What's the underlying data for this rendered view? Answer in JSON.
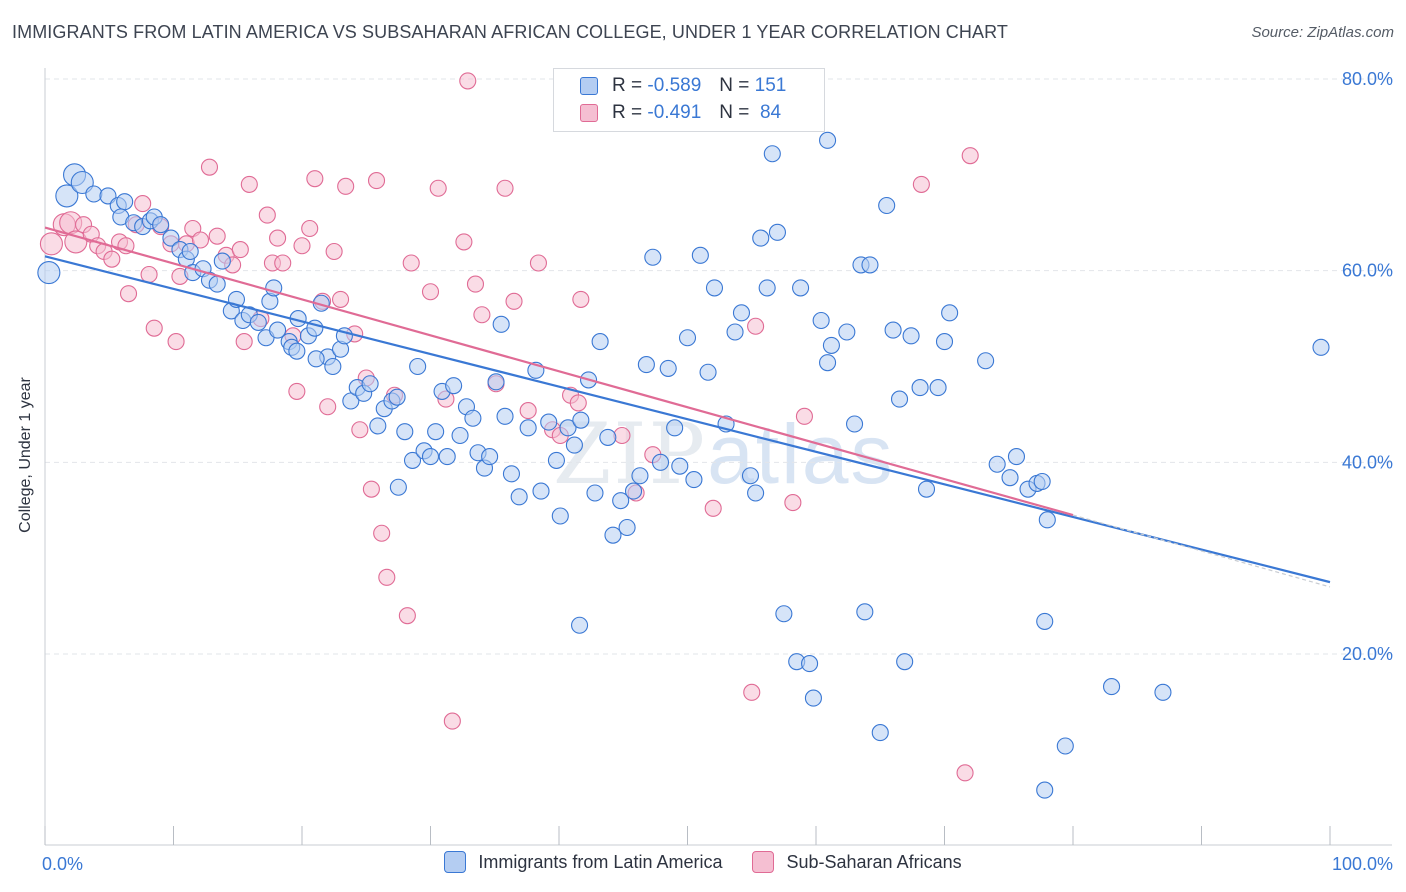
{
  "title": "IMMIGRANTS FROM LATIN AMERICA VS SUBSAHARAN AFRICAN COLLEGE, UNDER 1 YEAR CORRELATION CHART",
  "source": "Source: ZipAtlas.com",
  "watermark": {
    "zip": "ZIP",
    "atlas": "atlas"
  },
  "colors": {
    "blue": "#3a78d4",
    "blue_fill": "#b4cdf2",
    "pink": "#e06b95",
    "pink_fill": "#f5bfd2",
    "grid": "#e2e5ea",
    "axis_text": "#3a78d4"
  },
  "legend": [
    {
      "r_label": "R = ",
      "r_value": "-0.589",
      "n_label": "N = ",
      "n_value": "151"
    },
    {
      "r_label": "R = ",
      "r_value": "-0.491",
      "n_label": "N = ",
      "n_value": "84"
    }
  ],
  "chart_data": {
    "type": "scatter",
    "title": "IMMIGRANTS FROM LATIN AMERICA VS SUBSAHARAN AFRICAN COLLEGE, UNDER 1 YEAR CORRELATION CHART",
    "xlabel": "",
    "ylabel": "College, Under 1 year",
    "xlim": [
      0,
      100
    ],
    "ylim": [
      0,
      83
    ],
    "x_ticks": [
      "0.0%",
      "100.0%"
    ],
    "y_ticks": [
      {
        "value": 20,
        "label": "20.0%"
      },
      {
        "value": 40,
        "label": "40.0%"
      },
      {
        "value": 60,
        "label": "60.0%"
      },
      {
        "value": 80,
        "label": "80.0%"
      }
    ],
    "grid": true,
    "legend_position": "top-center",
    "series": [
      {
        "name": "Immigrants from Latin America",
        "color": "#3a78d4",
        "r": -0.589,
        "n": 151,
        "trend": {
          "x": [
            0,
            100
          ],
          "y": [
            61.5,
            27.5
          ]
        },
        "points": [
          [
            0.3,
            59.8
          ],
          [
            1.7,
            67.8
          ],
          [
            2.3,
            70.0
          ],
          [
            2.9,
            69.2
          ],
          [
            3.8,
            68.0
          ],
          [
            4.9,
            67.8
          ],
          [
            5.7,
            66.8
          ],
          [
            6.2,
            67.2
          ],
          [
            5.9,
            65.6
          ],
          [
            6.9,
            65.0
          ],
          [
            7.6,
            64.6
          ],
          [
            8.2,
            65.2
          ],
          [
            8.5,
            65.6
          ],
          [
            9.0,
            64.8
          ],
          [
            9.8,
            63.4
          ],
          [
            10.5,
            62.2
          ],
          [
            11.0,
            61.2
          ],
          [
            11.3,
            62.0
          ],
          [
            11.5,
            59.8
          ],
          [
            12.3,
            60.2
          ],
          [
            12.8,
            59.0
          ],
          [
            13.4,
            58.6
          ],
          [
            13.8,
            61.0
          ],
          [
            14.5,
            55.8
          ],
          [
            14.9,
            57.0
          ],
          [
            15.4,
            54.8
          ],
          [
            15.9,
            55.4
          ],
          [
            16.6,
            54.6
          ],
          [
            17.2,
            53.0
          ],
          [
            17.5,
            56.8
          ],
          [
            17.8,
            58.2
          ],
          [
            18.1,
            53.8
          ],
          [
            19.0,
            52.6
          ],
          [
            19.2,
            52.0
          ],
          [
            19.7,
            55.0
          ],
          [
            20.5,
            53.2
          ],
          [
            21.0,
            54.0
          ],
          [
            21.5,
            56.6
          ],
          [
            22.0,
            51.0
          ],
          [
            22.4,
            50.0
          ],
          [
            23.0,
            51.8
          ],
          [
            23.3,
            53.2
          ],
          [
            23.8,
            46.4
          ],
          [
            24.3,
            47.8
          ],
          [
            24.8,
            47.2
          ],
          [
            25.3,
            48.2
          ],
          [
            25.9,
            43.8
          ],
          [
            26.4,
            45.6
          ],
          [
            27.0,
            46.4
          ],
          [
            27.4,
            46.8
          ],
          [
            28.0,
            43.2
          ],
          [
            28.6,
            40.2
          ],
          [
            29.0,
            50.0
          ],
          [
            29.5,
            41.2
          ],
          [
            30.0,
            40.6
          ],
          [
            30.4,
            43.2
          ],
          [
            30.9,
            47.4
          ],
          [
            31.3,
            40.6
          ],
          [
            31.8,
            48.0
          ],
          [
            32.3,
            42.8
          ],
          [
            32.8,
            45.8
          ],
          [
            33.3,
            44.6
          ],
          [
            33.7,
            41.0
          ],
          [
            34.2,
            39.4
          ],
          [
            34.6,
            40.6
          ],
          [
            35.1,
            48.4
          ],
          [
            35.5,
            54.4
          ],
          [
            35.8,
            44.8
          ],
          [
            36.3,
            38.8
          ],
          [
            36.9,
            36.4
          ],
          [
            37.6,
            43.6
          ],
          [
            38.2,
            49.6
          ],
          [
            38.6,
            37.0
          ],
          [
            39.2,
            44.2
          ],
          [
            39.8,
            40.2
          ],
          [
            40.1,
            34.4
          ],
          [
            40.7,
            43.6
          ],
          [
            41.2,
            41.8
          ],
          [
            41.7,
            44.4
          ],
          [
            42.3,
            48.6
          ],
          [
            42.8,
            36.8
          ],
          [
            43.2,
            52.6
          ],
          [
            43.8,
            42.6
          ],
          [
            44.2,
            32.4
          ],
          [
            44.8,
            36.0
          ],
          [
            45.3,
            33.2
          ],
          [
            45.8,
            37.0
          ],
          [
            46.3,
            38.6
          ],
          [
            46.8,
            50.2
          ],
          [
            47.3,
            61.4
          ],
          [
            47.9,
            40.0
          ],
          [
            48.5,
            49.8
          ],
          [
            49.0,
            43.6
          ],
          [
            49.4,
            39.6
          ],
          [
            50.0,
            53.0
          ],
          [
            50.5,
            38.2
          ],
          [
            51.0,
            61.6
          ],
          [
            51.6,
            49.4
          ],
          [
            52.1,
            58.2
          ],
          [
            53.0,
            44.0
          ],
          [
            53.7,
            53.6
          ],
          [
            54.2,
            55.6
          ],
          [
            54.9,
            38.6
          ],
          [
            55.3,
            36.8
          ],
          [
            55.7,
            63.4
          ],
          [
            56.2,
            58.2
          ],
          [
            57.0,
            64.0
          ],
          [
            57.5,
            24.2
          ],
          [
            58.5,
            19.2
          ],
          [
            58.8,
            58.2
          ],
          [
            59.5,
            19.0
          ],
          [
            59.8,
            15.4
          ],
          [
            60.4,
            54.8
          ],
          [
            60.9,
            50.4
          ],
          [
            61.2,
            52.2
          ],
          [
            62.4,
            53.6
          ],
          [
            63.0,
            44.0
          ],
          [
            63.5,
            60.6
          ],
          [
            63.8,
            24.4
          ],
          [
            64.2,
            60.6
          ],
          [
            65.0,
            11.8
          ],
          [
            65.5,
            66.8
          ],
          [
            66.0,
            53.8
          ],
          [
            66.5,
            46.6
          ],
          [
            66.9,
            19.2
          ],
          [
            67.4,
            53.2
          ],
          [
            68.1,
            47.8
          ],
          [
            68.6,
            37.2
          ],
          [
            69.5,
            47.8
          ],
          [
            70.0,
            52.6
          ],
          [
            70.4,
            55.6
          ],
          [
            73.2,
            50.6
          ],
          [
            74.1,
            39.8
          ],
          [
            75.1,
            38.4
          ],
          [
            75.6,
            40.6
          ],
          [
            76.5,
            37.2
          ],
          [
            77.2,
            37.8
          ],
          [
            77.6,
            38.0
          ],
          [
            78.0,
            34.0
          ],
          [
            77.8,
            23.4
          ],
          [
            79.4,
            10.4
          ],
          [
            77.8,
            5.8
          ],
          [
            83.0,
            16.6
          ],
          [
            87.0,
            16.0
          ],
          [
            99.3,
            52.0
          ],
          [
            27.5,
            37.4
          ],
          [
            21.1,
            50.8
          ],
          [
            19.6,
            51.6
          ],
          [
            56.6,
            72.2
          ],
          [
            60.9,
            73.6
          ],
          [
            41.6,
            23.0
          ]
        ]
      },
      {
        "name": "Sub-Saharan Africans",
        "color": "#e06b95",
        "r": -0.491,
        "n": 84,
        "trend": {
          "x": [
            0,
            80
          ],
          "y": [
            64.5,
            34.5
          ]
        },
        "points": [
          [
            0.5,
            62.8
          ],
          [
            1.5,
            64.8
          ],
          [
            2.0,
            65.0
          ],
          [
            2.4,
            63.0
          ],
          [
            3.0,
            64.8
          ],
          [
            3.6,
            63.8
          ],
          [
            4.1,
            62.6
          ],
          [
            4.6,
            62.0
          ],
          [
            5.2,
            61.2
          ],
          [
            5.8,
            63.0
          ],
          [
            6.3,
            62.6
          ],
          [
            6.5,
            57.6
          ],
          [
            7.1,
            64.8
          ],
          [
            7.6,
            67.0
          ],
          [
            8.1,
            59.6
          ],
          [
            8.5,
            54.0
          ],
          [
            9.0,
            64.6
          ],
          [
            9.8,
            62.8
          ],
          [
            10.2,
            52.6
          ],
          [
            10.5,
            59.4
          ],
          [
            11.0,
            62.8
          ],
          [
            11.5,
            64.4
          ],
          [
            12.1,
            63.2
          ],
          [
            12.8,
            70.8
          ],
          [
            13.4,
            63.6
          ],
          [
            14.1,
            61.6
          ],
          [
            14.6,
            60.6
          ],
          [
            15.2,
            62.2
          ],
          [
            15.5,
            52.6
          ],
          [
            15.9,
            69.0
          ],
          [
            16.8,
            55.0
          ],
          [
            17.3,
            65.8
          ],
          [
            17.7,
            60.8
          ],
          [
            18.1,
            63.4
          ],
          [
            18.5,
            60.8
          ],
          [
            19.3,
            53.2
          ],
          [
            19.6,
            47.4
          ],
          [
            20.0,
            62.6
          ],
          [
            20.6,
            64.4
          ],
          [
            21.0,
            69.6
          ],
          [
            21.6,
            56.8
          ],
          [
            22.0,
            45.8
          ],
          [
            22.5,
            62.0
          ],
          [
            23.0,
            57.0
          ],
          [
            23.4,
            68.8
          ],
          [
            24.1,
            53.4
          ],
          [
            24.5,
            43.4
          ],
          [
            25.0,
            48.8
          ],
          [
            25.4,
            37.2
          ],
          [
            25.8,
            69.4
          ],
          [
            26.2,
            32.6
          ],
          [
            26.6,
            28.0
          ],
          [
            27.2,
            47.0
          ],
          [
            28.2,
            24.0
          ],
          [
            28.5,
            60.8
          ],
          [
            30.0,
            57.8
          ],
          [
            30.6,
            68.6
          ],
          [
            31.2,
            46.6
          ],
          [
            31.7,
            13.0
          ],
          [
            32.6,
            63.0
          ],
          [
            32.9,
            79.8
          ],
          [
            33.5,
            58.6
          ],
          [
            34.0,
            55.4
          ],
          [
            35.1,
            48.2
          ],
          [
            35.8,
            68.6
          ],
          [
            36.5,
            56.8
          ],
          [
            37.6,
            45.4
          ],
          [
            38.4,
            60.8
          ],
          [
            39.5,
            43.4
          ],
          [
            40.1,
            42.8
          ],
          [
            40.9,
            47.0
          ],
          [
            41.7,
            57.0
          ],
          [
            41.5,
            46.2
          ],
          [
            44.9,
            42.8
          ],
          [
            46.0,
            36.8
          ],
          [
            47.3,
            40.8
          ],
          [
            52.0,
            35.2
          ],
          [
            55.0,
            16.0
          ],
          [
            55.3,
            54.2
          ],
          [
            58.2,
            35.8
          ],
          [
            59.1,
            44.8
          ],
          [
            68.2,
            69.0
          ],
          [
            71.6,
            7.6
          ],
          [
            72.0,
            72.0
          ]
        ]
      }
    ]
  }
}
